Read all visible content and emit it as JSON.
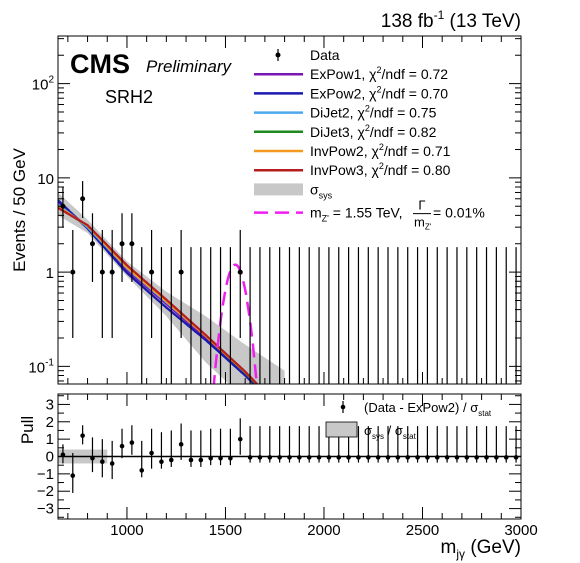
{
  "header": {
    "lumi": "138 fb",
    "lumi_exp": "-1",
    "energy": "(13 TeV)",
    "experiment": "CMS",
    "status": "Preliminary",
    "region": "SRH2"
  },
  "chart_data": {
    "type": "scatter",
    "x_unit": "GeV",
    "xlabel": {
      "main": "m",
      "sub": "jγ",
      "unit": "(GeV)"
    },
    "xlim": [
      650,
      3000
    ],
    "x_ticks": [
      "1000",
      "1500",
      "2000",
      "2500",
      "3000"
    ],
    "top": {
      "ylabel": "Events / 50 GeV",
      "y_scale": "log",
      "ylim": [
        0.065,
        320
      ],
      "y_ticks": [
        {
          "value": 0.1,
          "label": "10",
          "exp": "-1"
        },
        {
          "value": 1,
          "label": "1",
          "exp": ""
        },
        {
          "value": 10,
          "label": "10",
          "exp": ""
        },
        {
          "value": 100,
          "label": "10",
          "exp": "2"
        }
      ],
      "data": {
        "name": "Data",
        "x": [
          675,
          725,
          775,
          825,
          875,
          925,
          975,
          1025,
          1075,
          1125,
          1175,
          1225,
          1275,
          1325,
          1375,
          1425,
          1475,
          1525,
          1575,
          1625,
          1675,
          1725,
          1775,
          1825,
          1875,
          1925,
          1975,
          2025,
          2075,
          2125,
          2175,
          2225,
          2275,
          2325,
          2375,
          2425,
          2475,
          2525,
          2575,
          2625,
          2675,
          2725,
          2775,
          2825,
          2875,
          2925,
          2975
        ],
        "y": [
          5,
          1,
          6,
          2,
          1,
          1,
          2,
          2,
          0,
          1,
          0,
          0,
          1,
          0,
          0,
          0,
          0,
          0,
          1,
          0,
          0,
          0,
          0,
          0,
          0,
          0,
          0,
          0,
          0,
          0,
          0,
          0,
          0,
          0,
          0,
          0,
          0,
          0,
          0,
          0,
          0,
          0,
          0,
          0,
          0,
          0,
          0
        ]
      },
      "fits": [
        {
          "name": "ExPow1",
          "chi2": "0.72",
          "color": "#7b16b5",
          "y_at": [
            [
              650,
              5.5
            ],
            [
              800,
              3.0
            ],
            [
              1000,
              1.05
            ],
            [
              1200,
              0.46
            ],
            [
              1400,
              0.2
            ],
            [
              1600,
              0.085
            ],
            [
              1700,
              0.052
            ]
          ]
        },
        {
          "name": "ExPow2",
          "chi2": "0.70",
          "color": "#1a1ab0",
          "y_at": [
            [
              650,
              5.8
            ],
            [
              800,
              2.9
            ],
            [
              1000,
              0.98
            ],
            [
              1200,
              0.42
            ],
            [
              1400,
              0.19
            ],
            [
              1600,
              0.08
            ],
            [
              1700,
              0.05
            ]
          ]
        },
        {
          "name": "DiJet2",
          "chi2": "0.75",
          "color": "#4ea8ee",
          "y_at": [
            [
              650,
              5.2
            ],
            [
              800,
              3.0
            ],
            [
              1000,
              1.1
            ],
            [
              1200,
              0.48
            ],
            [
              1400,
              0.21
            ],
            [
              1600,
              0.088
            ],
            [
              1700,
              0.054
            ]
          ]
        },
        {
          "name": "DiJet3",
          "chi2": "0.82",
          "color": "#1e8a1e",
          "y_at": [
            [
              650,
              4.9
            ],
            [
              800,
              3.1
            ],
            [
              1000,
              1.15
            ],
            [
              1200,
              0.5
            ],
            [
              1400,
              0.21
            ],
            [
              1600,
              0.086
            ],
            [
              1700,
              0.052
            ]
          ]
        },
        {
          "name": "InvPow2",
          "chi2": "0.71",
          "color": "#f49a1e",
          "y_at": [
            [
              650,
              5.0
            ],
            [
              800,
              3.1
            ],
            [
              1000,
              1.12
            ],
            [
              1200,
              0.49
            ],
            [
              1400,
              0.21
            ],
            [
              1600,
              0.087
            ],
            [
              1700,
              0.053
            ]
          ]
        },
        {
          "name": "InvPow3",
          "chi2": "0.80",
          "color": "#b51e1e",
          "y_at": [
            [
              650,
              4.8
            ],
            [
              800,
              3.15
            ],
            [
              1000,
              1.18
            ],
            [
              1200,
              0.51
            ],
            [
              1400,
              0.215
            ],
            [
              1600,
              0.088
            ],
            [
              1700,
              0.053
            ]
          ]
        }
      ],
      "sys_band": {
        "name": "σ",
        "sub": "sys",
        "color": "#c8c8c8",
        "lo": [
          [
            650,
            4.0
          ],
          [
            800,
            2.6
          ],
          [
            1000,
            0.9
          ],
          [
            1200,
            0.34
          ],
          [
            1400,
            0.11
          ],
          [
            1600,
            0.045
          ],
          [
            1800,
            0.02
          ]
        ],
        "hi": [
          [
            650,
            7.0
          ],
          [
            800,
            3.6
          ],
          [
            1000,
            1.3
          ],
          [
            1200,
            0.62
          ],
          [
            1400,
            0.34
          ],
          [
            1600,
            0.17
          ],
          [
            1800,
            0.09
          ]
        ]
      },
      "signal": {
        "label_main": "m",
        "label_sub": "Z'",
        "label_mid": " = 1.55 TeV, ",
        "frac_num": "Γ",
        "frac_den_main": "m",
        "frac_den_sub": "Z'",
        "label_end": " = 0.01%",
        "color": "#f01ef0",
        "mass": 1550,
        "peak": 1.2,
        "width": 45
      }
    },
    "bottom": {
      "ylabel": "Pull",
      "ylim": [
        -3.6,
        3.6
      ],
      "y_ticks": [
        "-3",
        "-2",
        "-1",
        "0",
        "1",
        "2",
        "3"
      ],
      "legend_data": "(Data - ExPow2) / σ",
      "legend_data_sub": "stat",
      "legend_band_main": "σ",
      "legend_band_sub1": "sys",
      "legend_band_mid": " / σ",
      "legend_band_sub2": "stat",
      "pull": [
        0.1,
        -1.1,
        1.2,
        -0.1,
        -0.3,
        -0.4,
        0.6,
        0.8,
        -0.8,
        0.2,
        -0.3,
        -0.2,
        0.7,
        -0.2,
        -0.2,
        -0.1,
        -0.1,
        -0.1,
        1.0,
        -0.05,
        -0.05,
        -0.05,
        -0.05,
        -0.05,
        -0.05,
        -0.05,
        -0.05,
        -0.05,
        -0.05,
        -0.05,
        -0.05,
        -0.05,
        -0.05,
        -0.05,
        -0.05,
        -0.05,
        -0.05,
        -0.05,
        -0.05,
        -0.05,
        -0.05,
        -0.05,
        -0.05,
        -0.05,
        -0.05,
        -0.05,
        -0.05
      ],
      "pull_err_up": [
        0.6,
        1.3,
        0.6,
        1.2,
        1.3,
        1.3,
        1.0,
        1.0,
        1.7,
        1.4,
        1.7,
        1.7,
        1.2,
        1.7,
        1.7,
        1.7,
        1.7,
        1.7,
        1.2,
        1.8,
        1.8,
        1.8,
        1.8,
        1.8,
        1.8,
        1.8,
        1.8,
        1.8,
        1.8,
        1.8,
        1.8,
        1.8,
        1.8,
        1.8,
        1.8,
        1.8,
        1.8,
        1.8,
        1.8,
        1.8,
        1.8,
        1.8,
        1.8,
        1.8,
        1.8,
        1.8,
        1.8
      ],
      "pull_err_dn": [
        0.5,
        1.0,
        0.5,
        0.8,
        0.9,
        0.9,
        0.7,
        0.7,
        0.4,
        0.9,
        0.4,
        0.4,
        0.9,
        0.4,
        0.4,
        0.4,
        0.4,
        0.4,
        0.9,
        0.3,
        0.3,
        0.3,
        0.3,
        0.3,
        0.3,
        0.3,
        0.3,
        0.3,
        0.3,
        0.3,
        0.3,
        0.3,
        0.3,
        0.3,
        0.3,
        0.3,
        0.3,
        0.3,
        0.3,
        0.3,
        0.3,
        0.3,
        0.3,
        0.3,
        0.3,
        0.3,
        0.3
      ],
      "band_x_max": 900,
      "band_halfwidth": 0.4
    }
  }
}
